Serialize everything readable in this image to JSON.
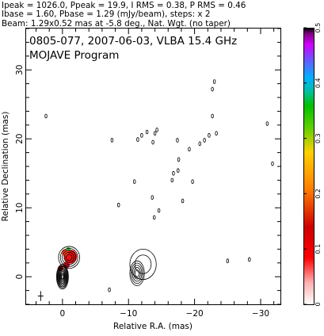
{
  "header": {
    "line1": "Ipeak = 1026.0, Ppeak = 19.9, I RMS = 0.38, P RMS = 0.46",
    "line2": "Ibase = 1.60, Pbase = 1.29 (mJy/beam), steps: x 2",
    "line3": "Beam: 1.29x0.52 mas at -5.8 deg., Nat. Wgt. (no taper)"
  },
  "chart_data": {
    "type": "contour",
    "title": "0805-077, 2007-06-03, VLBA 15.4 GHz",
    "subtitle": "MOJAVE Program",
    "xlabel": "Relative R.A. (mas)",
    "ylabel": "Relative Declination (mas)",
    "xlim": [
      5.5,
      -33
    ],
    "ylim": [
      -4,
      36
    ],
    "xticks": [
      0,
      -10,
      -20,
      -30
    ],
    "xtick_labels": [
      "0",
      "−10",
      "−20",
      "−30"
    ],
    "yticks": [
      0,
      10,
      20,
      30
    ],
    "ytick_labels": [
      "0",
      "10",
      "20",
      "30"
    ],
    "colorbar": {
      "min": 0,
      "max": 0.5,
      "ticks": [
        0,
        0.1,
        0.2,
        0.3,
        0.4,
        0.5
      ],
      "tick_labels": [
        "0",
        "0.1",
        "0.2",
        "0.3",
        "0.4",
        "0.5"
      ]
    },
    "contour_levels_mjy": [
      1.6,
      3.2,
      6.4,
      12.8,
      25.6,
      51.2,
      102.4,
      204.8,
      409.6,
      819.2
    ],
    "components": [
      {
        "x": 0.0,
        "y": 0.0,
        "a": 0.9,
        "b": 1.8,
        "levels": 10
      },
      {
        "x": -1.0,
        "y": 2.8,
        "a": 1.6,
        "b": 1.6,
        "levels": 5
      },
      {
        "x": -11.3,
        "y": 0.5,
        "a": 1.1,
        "b": 1.8,
        "levels": 5
      },
      {
        "x": -12.2,
        "y": 1.8,
        "a": 2.0,
        "b": 2.2,
        "levels": 2
      }
    ],
    "polarization_blobs": [
      {
        "x": -1.2,
        "y": 2.9,
        "size": 1.0,
        "color": "#ee1010"
      },
      {
        "x": -0.6,
        "y": 1.7,
        "size": 0.5,
        "color": "#d81020"
      },
      {
        "x": -0.4,
        "y": 3.5,
        "size": 0.5,
        "color": "#ff4020"
      },
      {
        "x": 0.3,
        "y": 1.2,
        "size": 0.4,
        "color": "#a00000"
      },
      {
        "x": -0.9,
        "y": 4.0,
        "size": 0.3,
        "color": "#30c030"
      }
    ],
    "noise_contours": [
      [
        2.5,
        23.3
      ],
      [
        -7.5,
        19.8
      ],
      [
        -11.4,
        19.9
      ],
      [
        -12.0,
        20.5
      ],
      [
        -12.8,
        21.0
      ],
      [
        -13.7,
        19.5
      ],
      [
        -14.0,
        20.8
      ],
      [
        -14.3,
        21.3
      ],
      [
        -17.4,
        19.8
      ],
      [
        -19.2,
        18.5
      ],
      [
        -20.8,
        19.3
      ],
      [
        -21.5,
        19.8
      ],
      [
        -22.2,
        20.5
      ],
      [
        -23.3,
        20.8
      ],
      [
        -22.7,
        23.3
      ],
      [
        -22.7,
        27.2
      ],
      [
        -23.0,
        28.3
      ],
      [
        -31.0,
        22.2
      ],
      [
        -31.8,
        16.4
      ],
      [
        -17.6,
        17.0
      ],
      [
        -17.5,
        15.4
      ],
      [
        -16.8,
        15.0
      ],
      [
        -16.6,
        14.0
      ],
      [
        -19.7,
        13.8
      ],
      [
        -18.2,
        11.0
      ],
      [
        -13.6,
        11.5
      ],
      [
        -14.6,
        9.6
      ],
      [
        -13.9,
        8.6
      ],
      [
        -8.5,
        10.4
      ],
      [
        -10.9,
        13.8
      ],
      [
        -25.0,
        2.3
      ],
      [
        -28.3,
        2.5
      ],
      [
        -7.1,
        -1.9
      ]
    ],
    "beam": {
      "x": 3.3,
      "y": -2.8,
      "major_mas": 1.29,
      "minor_mas": 0.52,
      "pa_deg": -5.8
    }
  }
}
